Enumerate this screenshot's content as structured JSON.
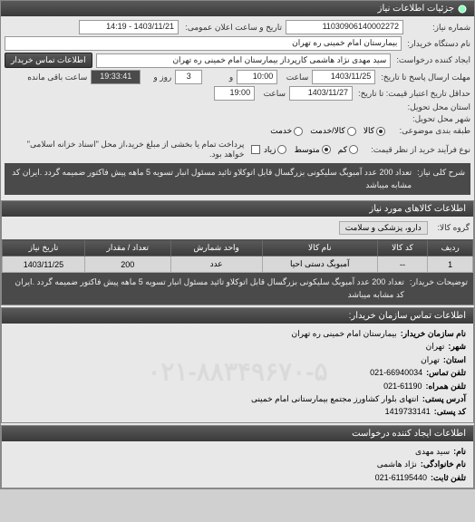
{
  "header": {
    "title": "جزئیات اطلاعات نیاز"
  },
  "form": {
    "need_no_label": "شماره نیاز:",
    "need_no": "11030906140002272",
    "announce_label": "تاریخ و ساعت اعلان عمومی:",
    "announce_value": "1403/11/21 - 14:19",
    "buyer_device_label": "نام دستگاه خریدار:",
    "buyer_device": "بیمارستان امام خمینی ره  تهران",
    "requester_label": "ایجاد کننده درخواست:",
    "requester": "سید مهدی  نژاد هاشمی   کارپرداز بیمارستان امام خمینی ره  تهران",
    "contact_btn": "اطلاعات تماس خریدار",
    "deadline_send_label": "مهلت ارسال پاسخ تا تاریخ:",
    "deadline_send_date": "1403/11/25",
    "saat_label": "ساعت",
    "deadline_send_time": "10:00",
    "va_label": "و",
    "days_remain": "3",
    "rooz_label": "روز و",
    "time_remain": "19:33:41",
    "remain_label": "ساعت باقی مانده",
    "validity_label": "حداقل تاریخ اعتبار قیمت: تا تاریخ:",
    "validity_date": "1403/11/27",
    "validity_time": "19:00",
    "province_label": "استان محل تحویل:",
    "city_label": "شهر محل تحویل:",
    "commodity_type_label": "طبقه بندی موضوعی:",
    "type_kala": "کالا",
    "type_service": "کالا/خدمت",
    "type_khadamat": "خدمت",
    "process_type_label": "نوع فرآیند خرید از نظر قیمت:",
    "proc_low": "کم",
    "proc_mid": "متوسط",
    "proc_high": "زیاد",
    "payment_note": "پرداخت تمام یا بخشی از مبلغ خرید،از محل \"اسناد خزانه اسلامی\" خواهد بود.",
    "desc_label": "شرح کلی نیاز:",
    "desc_text": "تعداد 200 عدد آمبوبگ سلیکونی بزرگسال قابل اتوکلاو تائید مسئول انبار تسویه 5 ماهه پیش فاکتور ضمیمه گردد .ایران کد مشابه میباشد"
  },
  "goods": {
    "header": "اطلاعات کالاهای مورد نیاز",
    "group_label": "گروه کالا:",
    "group_value": "دارو، پزشکی و سلامت",
    "columns": [
      "ردیف",
      "کد کالا",
      "نام کالا",
      "واحد شمارش",
      "تعداد / مقدار",
      "تاریخ نیاز"
    ],
    "rows": [
      [
        "1",
        "--",
        "آمبوبگ دستی احیا",
        "عدد",
        "200",
        "1403/11/25"
      ]
    ],
    "buyer_notes_label": "توضیحات خریدار:",
    "buyer_notes": "تعداد 200 عدد آمبوبگ سلیکونی بزرگسال قابل اتوکلاو تائید مسئول انبار تسویه 5 ماهه پیش فاکتور ضمیمه گردد .ایران کد مشابه میباشد"
  },
  "contact_org": {
    "header": "اطلاعات تماس سازمان خریدار:",
    "rows": [
      {
        "label": "نام سازمان خریدار:",
        "value": "بیمارستان امام خمینی ره  تهران"
      },
      {
        "label": "شهر:",
        "value": "تهران"
      },
      {
        "label": "استان:",
        "value": "تهران"
      },
      {
        "label": "تلفن تماس:",
        "value": "021-66940034"
      },
      {
        "label": "تلفن همراه:",
        "value": "021-61190"
      },
      {
        "label": "آدرس پستی:",
        "value": "انتهای بلوار کشاورز مجتمع بیمارستانی امام خمینی"
      },
      {
        "label": "کد پستی:",
        "value": "1419733141"
      }
    ]
  },
  "contact_creator": {
    "header": "اطلاعات ایجاد کننده درخواست",
    "rows": [
      {
        "label": "نام:",
        "value": "سید مهدی"
      },
      {
        "label": "نام خانوادگی:",
        "value": "نژاد هاشمی"
      },
      {
        "label": "تلفن ثابت:",
        "value": "021-61195440"
      }
    ]
  },
  "watermark": "۰۲۱-۸۸۳۴۹۶۷۰-۵"
}
